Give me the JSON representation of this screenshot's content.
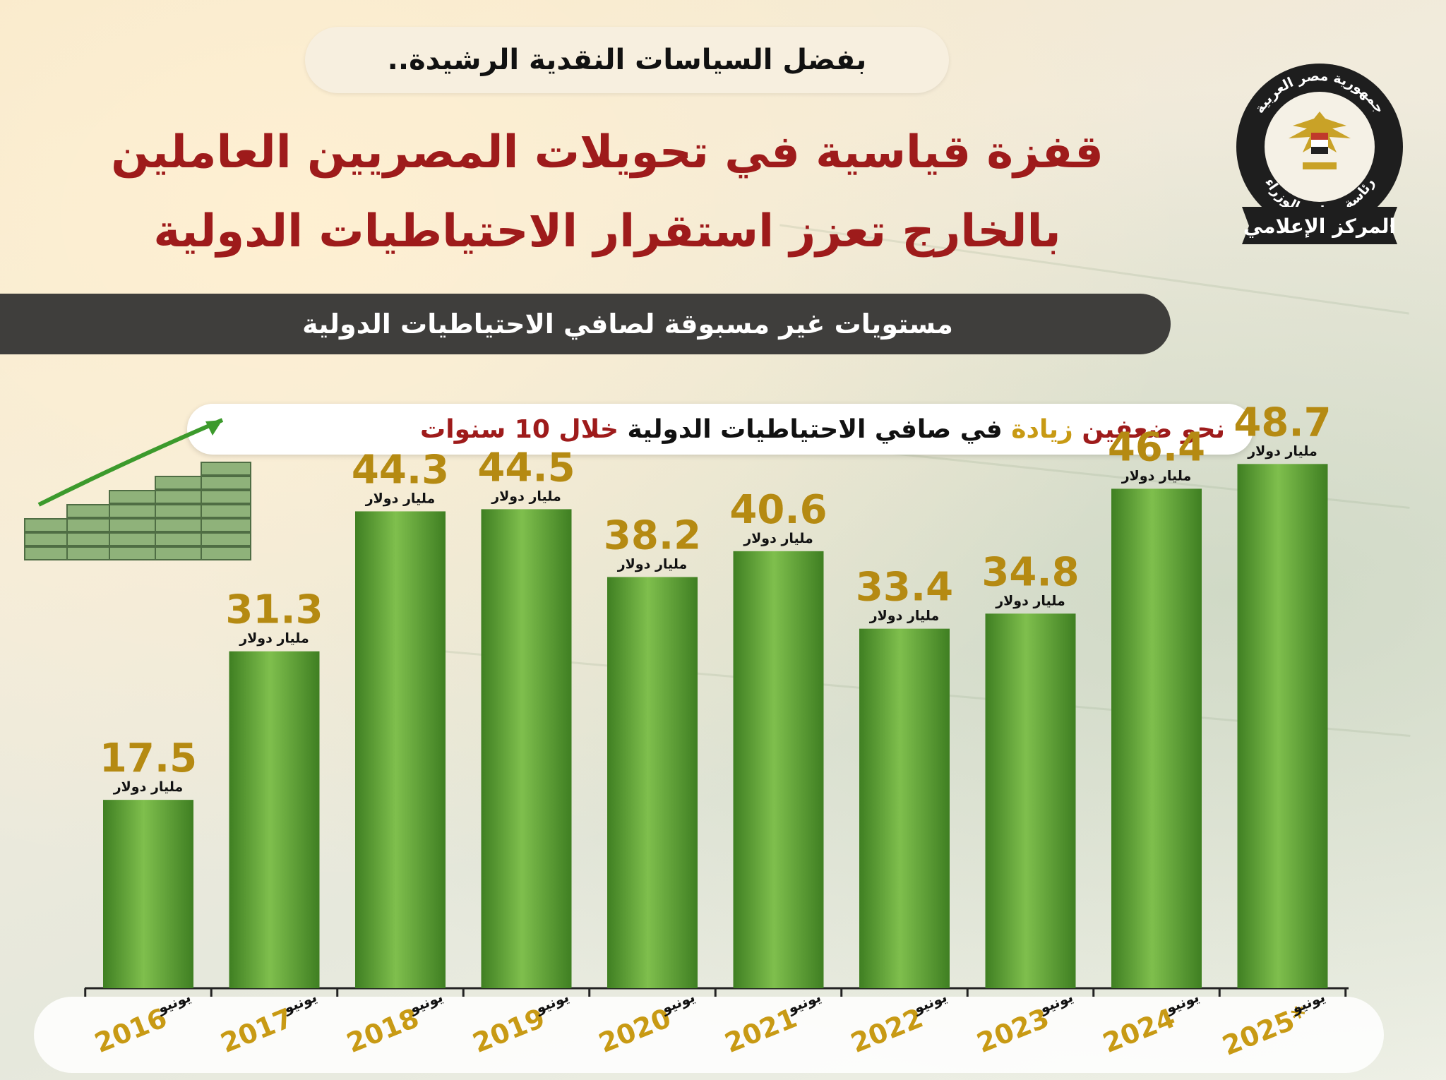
{
  "header": {
    "subtitle": "بفضل السياسات النقدية الرشيدة..",
    "title_line1": "قفزة قياسية في تحويلات المصريين العاملين",
    "title_line2": "بالخارج تعزز استقرار الاحتياطيات الدولية",
    "band": "مستويات غير مسبوقة لصافي الاحتياطيات الدولية"
  },
  "highlight": {
    "part1": "نحو ضعفين ",
    "part2": "زيادة",
    "part3": " في صافي الاحتياطيات الدولية ",
    "part4": "خلال 10 سنوات"
  },
  "logo": {
    "ring_top": "جمهورية مصر العربية",
    "ring_bottom": "رئاسة مجلس الوزراء",
    "banner": "المركز الإعلامي"
  },
  "colors": {
    "title_red": "#9e1b1b",
    "bar_green": "#5aa032",
    "value_gold": "#b58a12",
    "year_gold": "#c89a14",
    "highlight_red": "#9e1b1b",
    "highlight_gold": "#c89a14"
  },
  "chart_data": {
    "type": "bar",
    "unit": "مليار دولار",
    "month_label": "يونيو",
    "categories": [
      "2016",
      "2017",
      "2018",
      "2019",
      "2020",
      "2021",
      "2022",
      "2023",
      "2024",
      "2025*"
    ],
    "values": [
      17.5,
      31.3,
      44.3,
      44.5,
      38.2,
      40.6,
      33.4,
      34.8,
      46.4,
      48.7
    ],
    "value_labels": [
      "17.5",
      "31.3",
      "44.3",
      "44.5",
      "38.2",
      "40.6",
      "33.4",
      "34.8",
      "46.4",
      "48.7"
    ],
    "ylim": [
      0,
      60
    ],
    "grid": false,
    "legend": "none"
  }
}
